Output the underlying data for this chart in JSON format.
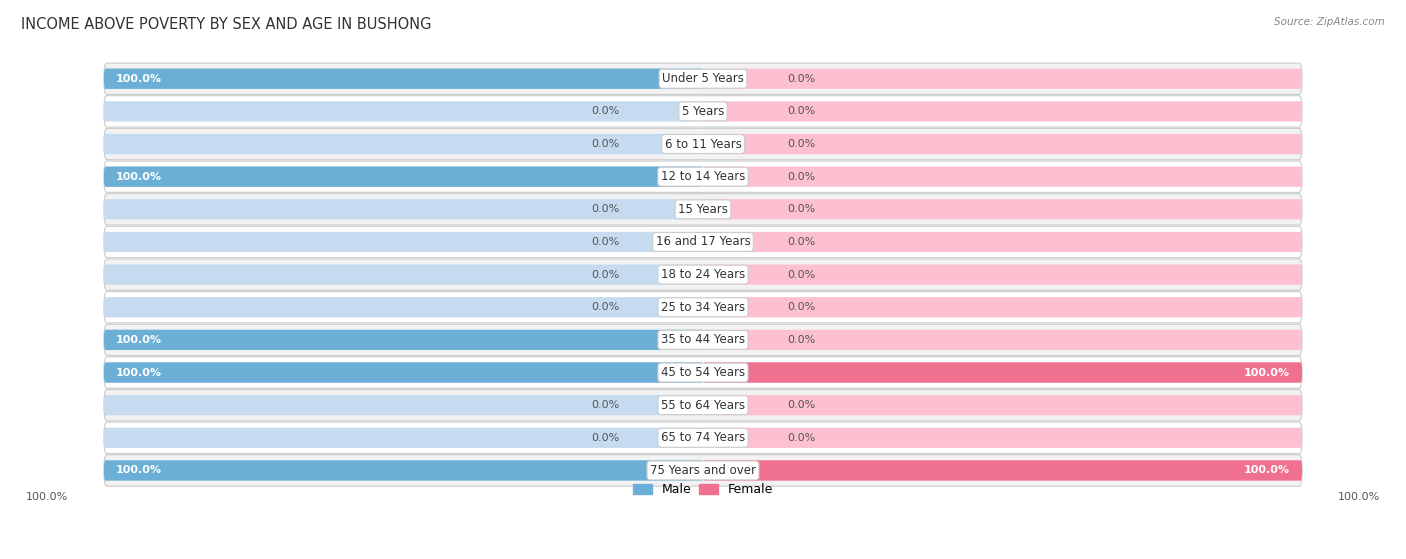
{
  "title": "INCOME ABOVE POVERTY BY SEX AND AGE IN BUSHONG",
  "source": "Source: ZipAtlas.com",
  "categories": [
    "Under 5 Years",
    "5 Years",
    "6 to 11 Years",
    "12 to 14 Years",
    "15 Years",
    "16 and 17 Years",
    "18 to 24 Years",
    "25 to 34 Years",
    "35 to 44 Years",
    "45 to 54 Years",
    "55 to 64 Years",
    "65 to 74 Years",
    "75 Years and over"
  ],
  "male_values": [
    100.0,
    0.0,
    0.0,
    100.0,
    0.0,
    0.0,
    0.0,
    0.0,
    100.0,
    100.0,
    0.0,
    0.0,
    100.0
  ],
  "female_values": [
    0.0,
    0.0,
    0.0,
    0.0,
    0.0,
    0.0,
    0.0,
    0.0,
    0.0,
    100.0,
    0.0,
    0.0,
    100.0
  ],
  "male_color": "#6baed6",
  "female_color": "#f07090",
  "male_color_light": "#c6dbef",
  "female_color_light": "#fcc0d0",
  "row_bg_light": "#f7f7f7",
  "row_bg_dark": "#eeeeee",
  "row_border": "#dddddd",
  "title_fontsize": 10.5,
  "label_fontsize": 8.5,
  "value_fontsize": 8,
  "legend_fontsize": 9,
  "source_fontsize": 7.5
}
